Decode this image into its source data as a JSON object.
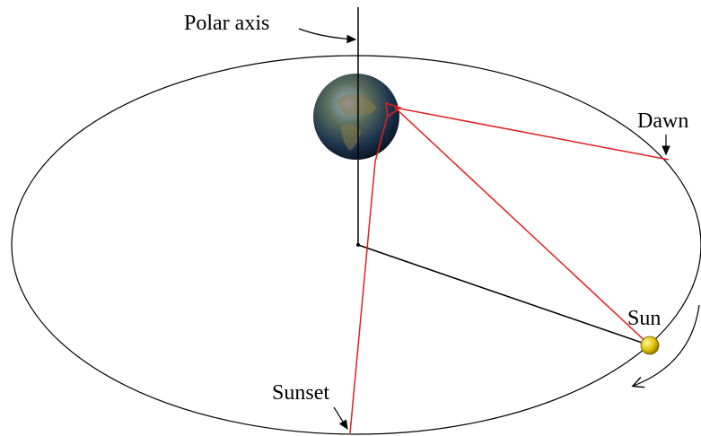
{
  "labels": {
    "polar_axis": "Polar axis",
    "dawn": "Dawn",
    "sun": "Sun",
    "sunset": "Sunset"
  }
}
